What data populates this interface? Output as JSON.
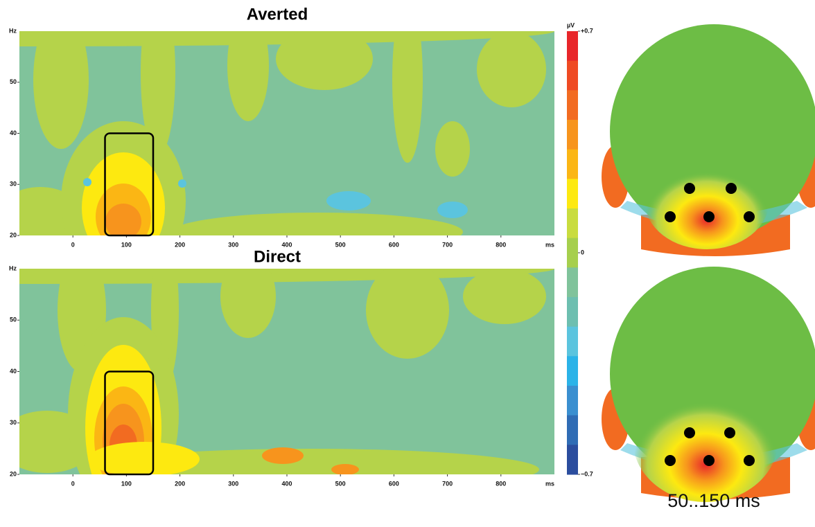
{
  "chart_data": [
    {
      "type": "heatmap",
      "title": "Averted",
      "ylabel": "Hz",
      "xlabel": "ms",
      "xlim": [
        -100,
        900
      ],
      "ylim": [
        20,
        60
      ],
      "xticks": [
        0,
        100,
        200,
        300,
        400,
        500,
        600,
        700,
        800
      ],
      "yticks": [
        20,
        30,
        40,
        50
      ],
      "highlight": {
        "x": [
          60,
          150
        ],
        "y": [
          20,
          40
        ]
      }
    },
    {
      "type": "heatmap",
      "title": "Direct",
      "ylabel": "Hz",
      "xlabel": "ms",
      "xlim": [
        -100,
        900
      ],
      "ylim": [
        20,
        60
      ],
      "xticks": [
        0,
        100,
        200,
        300,
        400,
        500,
        600,
        700,
        800
      ],
      "yticks": [
        20,
        30,
        40,
        50
      ],
      "highlight": {
        "x": [
          60,
          150
        ],
        "y": [
          20,
          40
        ]
      }
    }
  ],
  "colorbar": {
    "label": "µV",
    "lim": [
      -0.7,
      0.7
    ],
    "ticks": [
      {
        "value": 0.7,
        "label": "+0.7"
      },
      0,
      {
        "value": -0.7,
        "label": "−0.7"
      }
    ],
    "colors": [
      "#e8262a",
      "#ef4a23",
      "#f26b21",
      "#f7941d",
      "#fbb614",
      "#fde910",
      "#c9dc3e",
      "#a6cf4d",
      "#80c39b",
      "#6dbfb0",
      "#5bc4de",
      "#2bb3e8",
      "#3a8fd0",
      "#2f6cb5",
      "#2b4d9e"
    ]
  },
  "topomap_caption": "50..150 ms"
}
